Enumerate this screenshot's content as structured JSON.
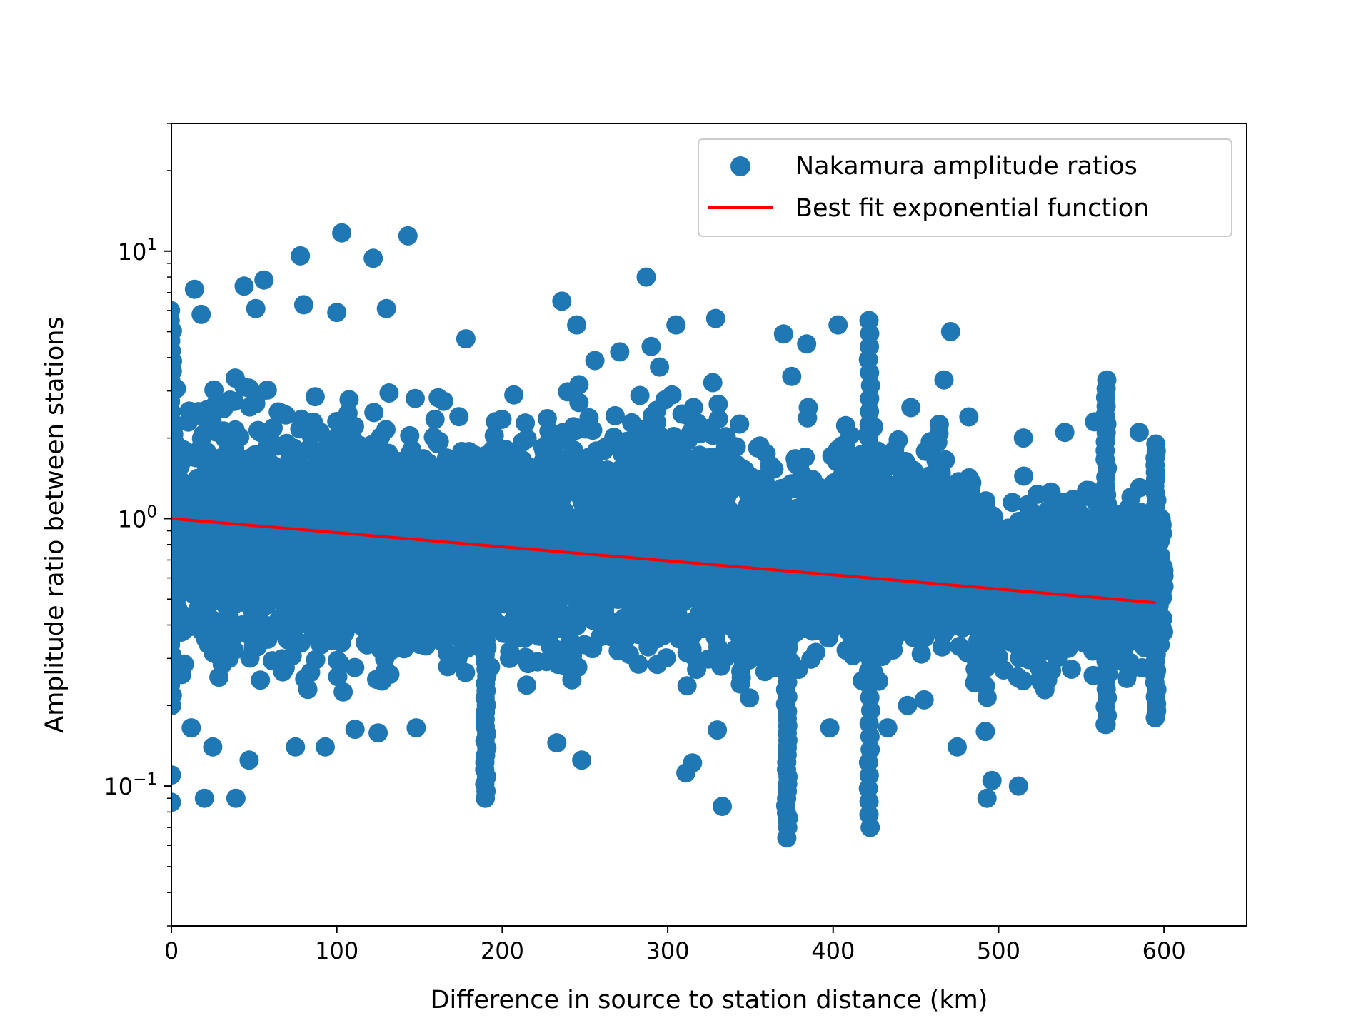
{
  "chart_data": {
    "type": "scatter",
    "title": "",
    "xlabel": "Difference in source to station distance (km)",
    "ylabel": "Amplitude ratio between stations",
    "xlim": [
      0,
      650
    ],
    "ylim": [
      0.03,
      30
    ],
    "yscale": "log",
    "grid": false,
    "legend_position": "top-right",
    "x_ticks": [
      "0",
      "100",
      "200",
      "300",
      "400",
      "500",
      "600"
    ],
    "y_ticks": [
      {
        "value": 0.1,
        "base": "10",
        "exp": "−1"
      },
      {
        "value": 1,
        "base": "10",
        "exp": "0"
      },
      {
        "value": 10,
        "base": "10",
        "exp": "1"
      }
    ],
    "series": [
      {
        "name": "Nakamura amplitude ratios",
        "kind": "scatter",
        "color": "#1f77b4",
        "clusters": [
          {
            "x_min": 0,
            "x_max": 110,
            "y_min": 0.13,
            "y_max": 5.5
          },
          {
            "x_min": 110,
            "x_max": 185,
            "y_min": 0.16,
            "y_max": 4.0
          },
          {
            "x_min": 185,
            "x_max": 270,
            "y_min": 0.15,
            "y_max": 4.5
          },
          {
            "x_min": 270,
            "x_max": 340,
            "y_min": 0.15,
            "y_max": 5.0
          },
          {
            "x_min": 340,
            "x_max": 400,
            "y_min": 0.15,
            "y_max": 3.0
          },
          {
            "x_min": 400,
            "x_max": 450,
            "y_min": 0.15,
            "y_max": 4.0
          },
          {
            "x_min": 450,
            "x_max": 485,
            "y_min": 0.2,
            "y_max": 3.0
          },
          {
            "x_min": 485,
            "x_max": 545,
            "y_min": 0.15,
            "y_max": 2.0
          },
          {
            "x_min": 545,
            "x_max": 600,
            "y_min": 0.18,
            "y_max": 2.0
          }
        ],
        "columns": [
          {
            "x": 0,
            "y_min": 0.2,
            "y_max": 6.0
          },
          {
            "x": 190,
            "y_min": 0.09,
            "y_max": 1.0
          },
          {
            "x": 372,
            "y_min": 0.07,
            "y_max": 0.8
          },
          {
            "x": 422,
            "y_min": 0.07,
            "y_max": 5.5
          },
          {
            "x": 565,
            "y_min": 0.17,
            "y_max": 3.3
          },
          {
            "x": 595,
            "y_min": 0.18,
            "y_max": 1.9
          }
        ],
        "points": [
          {
            "x": 0,
            "y": 0.087
          },
          {
            "x": 0,
            "y": 0.11
          },
          {
            "x": 20,
            "y": 0.09
          },
          {
            "x": 39,
            "y": 0.09
          },
          {
            "x": 14,
            "y": 7.2
          },
          {
            "x": 44,
            "y": 7.4
          },
          {
            "x": 56,
            "y": 7.8
          },
          {
            "x": 78,
            "y": 9.6
          },
          {
            "x": 103,
            "y": 11.7
          },
          {
            "x": 122,
            "y": 9.4
          },
          {
            "x": 143,
            "y": 11.4
          },
          {
            "x": 287,
            "y": 8.0
          },
          {
            "x": 236,
            "y": 6.5
          },
          {
            "x": 80,
            "y": 6.3
          },
          {
            "x": 130,
            "y": 6.1
          },
          {
            "x": 100,
            "y": 5.9
          },
          {
            "x": 51,
            "y": 6.1
          },
          {
            "x": 18,
            "y": 5.8
          },
          {
            "x": 329,
            "y": 5.6
          },
          {
            "x": 305,
            "y": 5.3
          },
          {
            "x": 245,
            "y": 5.3
          },
          {
            "x": 403,
            "y": 5.3
          },
          {
            "x": 370,
            "y": 4.9
          },
          {
            "x": 471,
            "y": 5.0
          },
          {
            "x": 384,
            "y": 4.5
          },
          {
            "x": 178,
            "y": 4.7
          },
          {
            "x": 271,
            "y": 4.2
          },
          {
            "x": 256,
            "y": 3.9
          },
          {
            "x": 290,
            "y": 4.4
          },
          {
            "x": 375,
            "y": 3.4
          },
          {
            "x": 207,
            "y": 2.9
          },
          {
            "x": 385,
            "y": 2.6
          },
          {
            "x": 540,
            "y": 2.1
          },
          {
            "x": 558,
            "y": 2.3
          },
          {
            "x": 585,
            "y": 2.1
          },
          {
            "x": 515,
            "y": 2.0
          },
          {
            "x": 482,
            "y": 2.4
          },
          {
            "x": 467,
            "y": 3.3
          },
          {
            "x": 447,
            "y": 2.6
          },
          {
            "x": 333,
            "y": 0.084
          },
          {
            "x": 372,
            "y": 0.064
          },
          {
            "x": 373,
            "y": 0.076
          },
          {
            "x": 493,
            "y": 0.09
          },
          {
            "x": 496,
            "y": 0.105
          },
          {
            "x": 512,
            "y": 0.1
          },
          {
            "x": 311,
            "y": 0.112
          },
          {
            "x": 315,
            "y": 0.122
          },
          {
            "x": 47,
            "y": 0.125
          },
          {
            "x": 25,
            "y": 0.14
          },
          {
            "x": 75,
            "y": 0.14
          },
          {
            "x": 93,
            "y": 0.14
          },
          {
            "x": 12,
            "y": 0.165
          },
          {
            "x": 111,
            "y": 0.163
          },
          {
            "x": 125,
            "y": 0.158
          },
          {
            "x": 148,
            "y": 0.165
          },
          {
            "x": 233,
            "y": 0.145
          },
          {
            "x": 248,
            "y": 0.125
          },
          {
            "x": 330,
            "y": 0.162
          },
          {
            "x": 398,
            "y": 0.165
          },
          {
            "x": 433,
            "y": 0.165
          },
          {
            "x": 475,
            "y": 0.14
          },
          {
            "x": 492,
            "y": 0.16
          },
          {
            "x": 565,
            "y": 0.17
          },
          {
            "x": 415,
            "y": 0.46
          },
          {
            "x": 555,
            "y": 0.46
          },
          {
            "x": 540,
            "y": 0.72
          },
          {
            "x": 500,
            "y": 0.6
          },
          {
            "x": 490,
            "y": 0.72
          },
          {
            "x": 525,
            "y": 0.45
          },
          {
            "x": 445,
            "y": 0.2
          },
          {
            "x": 455,
            "y": 0.21
          }
        ]
      },
      {
        "name": "Best fit exponential function",
        "kind": "line",
        "color": "#ff0000",
        "x": [
          0,
          100,
          200,
          300,
          400,
          500,
          595
        ],
        "y": [
          1.0,
          0.886,
          0.784,
          0.695,
          0.616,
          0.545,
          0.485
        ]
      }
    ]
  }
}
